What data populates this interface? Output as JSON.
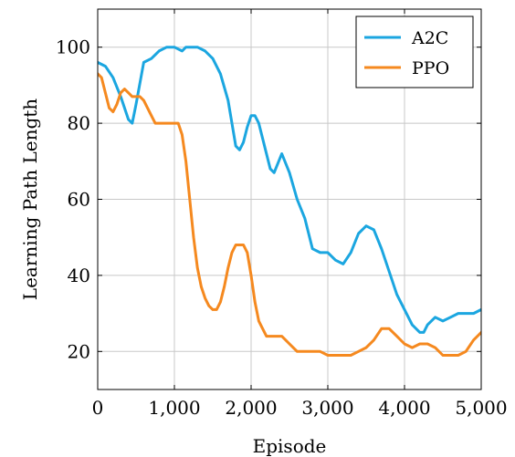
{
  "chart_data": {
    "type": "line",
    "title": "",
    "xlabel": "Episode",
    "ylabel": "Learning Path Length",
    "xlim": [
      0,
      5000
    ],
    "ylim": [
      10,
      110
    ],
    "xticks": [
      0,
      1000,
      2000,
      3000,
      4000,
      5000
    ],
    "xtick_labels": [
      "0",
      "1,000",
      "2,000",
      "3,000",
      "4,000",
      "5,000"
    ],
    "yticks": [
      20,
      40,
      60,
      80,
      100
    ],
    "ytick_labels": [
      "20",
      "40",
      "60",
      "80",
      "100"
    ],
    "grid": true,
    "legend_position": "top-right",
    "series": [
      {
        "name": "A2C",
        "color": "#1ba6e0",
        "x": [
          0,
          100,
          200,
          300,
          400,
          450,
          500,
          600,
          700,
          800,
          900,
          1000,
          1100,
          1150,
          1200,
          1300,
          1400,
          1500,
          1600,
          1700,
          1800,
          1850,
          1900,
          1950,
          2000,
          2050,
          2100,
          2150,
          2200,
          2250,
          2300,
          2400,
          2500,
          2600,
          2700,
          2800,
          2900,
          3000,
          3100,
          3200,
          3300,
          3400,
          3500,
          3600,
          3700,
          3800,
          3900,
          4000,
          4100,
          4200,
          4250,
          4300,
          4400,
          4500,
          4600,
          4700,
          4800,
          4900,
          5000
        ],
        "y": [
          96,
          95,
          92,
          87,
          81,
          80,
          85,
          96,
          97,
          99,
          100,
          100,
          99,
          100,
          100,
          100,
          99,
          97,
          93,
          86,
          74,
          73,
          75,
          79,
          82,
          82,
          80,
          76,
          72,
          68,
          67,
          72,
          67,
          60,
          55,
          47,
          46,
          46,
          44,
          43,
          46,
          51,
          53,
          52,
          47,
          41,
          35,
          31,
          27,
          25,
          25,
          27,
          29,
          28,
          29,
          30,
          30,
          30,
          31
        ]
      },
      {
        "name": "PPO",
        "color": "#f5891f",
        "x": [
          0,
          50,
          100,
          150,
          200,
          250,
          300,
          350,
          400,
          450,
          500,
          550,
          600,
          650,
          700,
          750,
          800,
          900,
          1000,
          1050,
          1100,
          1150,
          1200,
          1250,
          1300,
          1350,
          1400,
          1450,
          1500,
          1550,
          1600,
          1650,
          1700,
          1750,
          1800,
          1850,
          1900,
          1950,
          2000,
          2050,
          2100,
          2150,
          2200,
          2300,
          2400,
          2500,
          2600,
          2700,
          2800,
          2900,
          3000,
          3100,
          3200,
          3300,
          3400,
          3500,
          3600,
          3700,
          3800,
          3900,
          4000,
          4100,
          4200,
          4300,
          4400,
          4500,
          4600,
          4700,
          4800,
          4900,
          5000
        ],
        "y": [
          93,
          92,
          88,
          84,
          83,
          85,
          88,
          89,
          88,
          87,
          87,
          87,
          86,
          84,
          82,
          80,
          80,
          80,
          80,
          80,
          77,
          70,
          60,
          50,
          42,
          37,
          34,
          32,
          31,
          31,
          33,
          37,
          42,
          46,
          48,
          48,
          48,
          46,
          40,
          33,
          28,
          26,
          24,
          24,
          24,
          22,
          20,
          20,
          20,
          20,
          19,
          19,
          19,
          19,
          20,
          21,
          23,
          26,
          26,
          24,
          22,
          21,
          22,
          22,
          21,
          19,
          19,
          19,
          20,
          23,
          25
        ]
      }
    ]
  }
}
